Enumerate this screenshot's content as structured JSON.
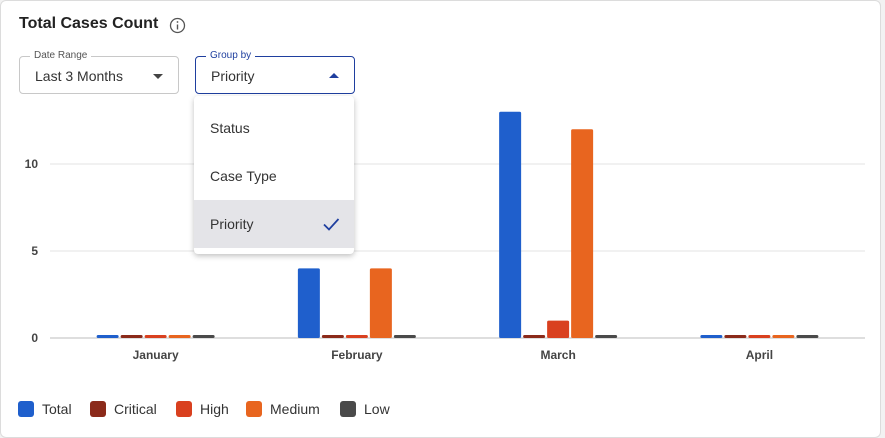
{
  "card": {
    "title": "Total Cases Count",
    "info_icon": "info-circle-icon"
  },
  "filters": {
    "date_range": {
      "label": "Date Range",
      "value": "Last 3 Months",
      "icon": "caret-down-icon"
    },
    "group_by": {
      "label": "Group by",
      "value": "Priority",
      "icon": "caret-up-icon",
      "open": true
    }
  },
  "dropdown": {
    "options": [
      {
        "label": "Status",
        "selected": false
      },
      {
        "label": "Case Type",
        "selected": false
      },
      {
        "label": "Priority",
        "selected": true
      }
    ],
    "check_icon": "checkmark-icon"
  },
  "chart_data": {
    "type": "bar",
    "categories": [
      "January",
      "February",
      "March",
      "April"
    ],
    "series": [
      {
        "name": "Total",
        "values": [
          0,
          4,
          13,
          0
        ],
        "color": "#1f5fcc"
      },
      {
        "name": "Critical",
        "values": [
          0,
          0,
          0,
          0
        ],
        "color": "#8b2a1a"
      },
      {
        "name": "High",
        "values": [
          0,
          0,
          1,
          0
        ],
        "color": "#d9401f"
      },
      {
        "name": "Medium",
        "values": [
          0,
          4,
          12,
          0
        ],
        "color": "#e8651f"
      },
      {
        "name": "Low",
        "values": [
          0,
          0,
          0,
          0
        ],
        "color": "#4a4a4a"
      }
    ],
    "y_ticks": [
      "0",
      "5",
      "10"
    ],
    "ylim": [
      0,
      14
    ],
    "grid": true,
    "legend_position": "bottom-left"
  }
}
